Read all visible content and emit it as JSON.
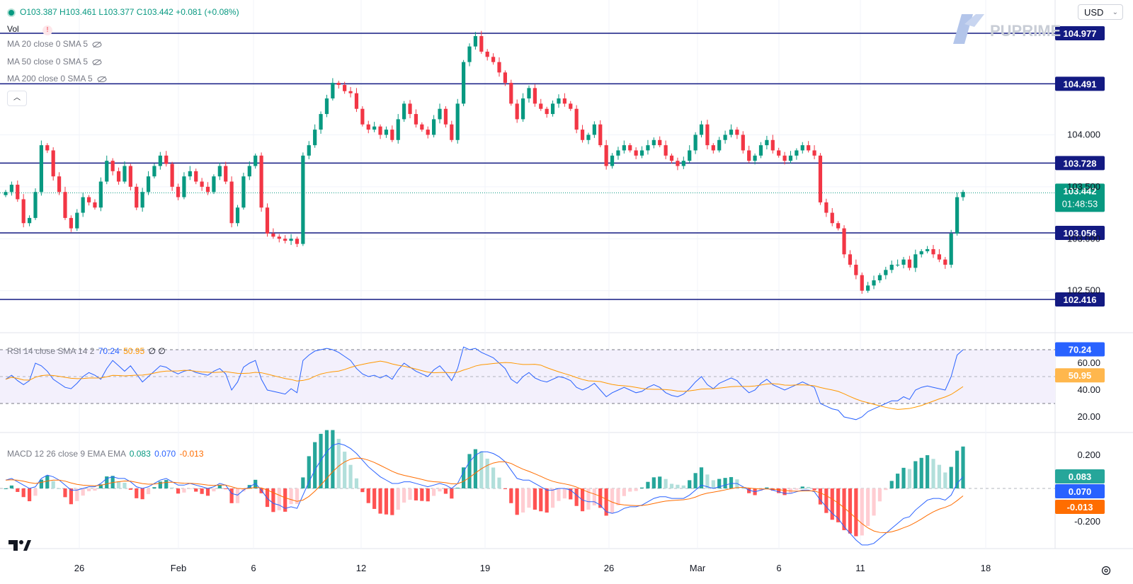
{
  "symbol": {
    "ohlc_text": "O103.387  H103.461  L103.377  C103.442  +0.081 (+0.08%)",
    "vol_label": "Vol",
    "vol_warning": "!",
    "indicators": [
      "MA 20 close 0 SMA 5",
      "MA 50 close 0 SMA 5",
      "MA 200 close 0 SMA 5"
    ]
  },
  "currency": "USD",
  "brand": "PUPRIME",
  "colors": {
    "up": "#089981",
    "down": "#f23645",
    "line": "#131a82",
    "rsi": "#2962ff",
    "rsi_ma": "#ff9800",
    "macd_line": "#2962ff",
    "signal": "#ff6d00"
  },
  "chart_data": [
    {
      "type": "candlestick",
      "title": "",
      "current_price": "103.442",
      "countdown": "01:48:53",
      "yaxis_ticks": [
        "104.000",
        "103.500",
        "103.000",
        "102.500"
      ],
      "xaxis_ticks": [
        "26",
        "Feb",
        "6",
        "12",
        "19",
        "26",
        "Mar",
        "6",
        "11",
        "18"
      ],
      "ylim": [
        102.3,
        105.05
      ],
      "support_resistance_levels": [
        "104.977",
        "104.491",
        "103.728",
        "103.056",
        "102.416"
      ],
      "candles_close": [
        103.45,
        103.52,
        103.38,
        103.15,
        103.2,
        103.45,
        103.9,
        103.85,
        103.6,
        103.45,
        103.2,
        103.1,
        103.25,
        103.4,
        103.35,
        103.3,
        103.55,
        103.75,
        103.65,
        103.55,
        103.7,
        103.5,
        103.3,
        103.45,
        103.6,
        103.7,
        103.8,
        103.72,
        103.5,
        103.4,
        103.6,
        103.65,
        103.55,
        103.5,
        103.45,
        103.6,
        103.7,
        103.55,
        103.15,
        103.3,
        103.6,
        103.7,
        103.8,
        103.3,
        103.05,
        103.02,
        103.0,
        102.98,
        103.0,
        102.95,
        103.8,
        103.9,
        104.05,
        104.2,
        104.35,
        104.5,
        104.48,
        104.42,
        104.4,
        104.25,
        104.1,
        104.05,
        104.08,
        104.0,
        104.05,
        103.95,
        104.15,
        104.3,
        104.2,
        104.1,
        104.05,
        104.0,
        104.15,
        104.25,
        104.1,
        103.95,
        104.3,
        104.7,
        104.85,
        104.95,
        104.8,
        104.75,
        104.7,
        104.6,
        104.5,
        104.3,
        104.15,
        104.35,
        104.45,
        104.3,
        104.25,
        104.2,
        104.3,
        104.35,
        104.3,
        104.25,
        104.05,
        103.95,
        104.0,
        104.1,
        103.9,
        103.7,
        103.8,
        103.85,
        103.9,
        103.85,
        103.8,
        103.85,
        103.9,
        103.95,
        103.9,
        103.8,
        103.75,
        103.7,
        103.75,
        103.85,
        104.0,
        104.1,
        103.9,
        103.85,
        103.95,
        104.0,
        104.05,
        104.0,
        103.85,
        103.75,
        103.8,
        103.9,
        103.95,
        103.85,
        103.8,
        103.75,
        103.8,
        103.85,
        103.9,
        103.85,
        103.8,
        103.35,
        103.25,
        103.15,
        103.1,
        102.85,
        102.75,
        102.65,
        102.5,
        102.55,
        102.6,
        102.65,
        102.7,
        102.75,
        102.75,
        102.8,
        102.72,
        102.85,
        102.88,
        102.9,
        102.85,
        102.8,
        102.75,
        103.05,
        103.4,
        103.45
      ],
      "macd_legend": {
        "label": "MACD 12 26 close 9 EMA EMA",
        "hist": "0.083",
        "macd": "0.070",
        "signal": "-0.013"
      },
      "macd_ticks": [
        "0.200",
        "-0.200"
      ],
      "rsi_legend": {
        "label": "RSI 14 close SMA 14 2",
        "rsi": "70.24",
        "ma": "50.95",
        "extra": "∅ ∅"
      },
      "rsi_ticks": [
        "60.00",
        "40.00",
        "20.00"
      ],
      "rsi_values": [
        48,
        51,
        47,
        44,
        47,
        60,
        58,
        54,
        48,
        45,
        42,
        41,
        45,
        50,
        53,
        51,
        48,
        56,
        62,
        58,
        54,
        58,
        52,
        46,
        50,
        54,
        58,
        57,
        54,
        52,
        54,
        55,
        53,
        52,
        51,
        54,
        56,
        52,
        40,
        46,
        57,
        60,
        62,
        48,
        40,
        39,
        38,
        37,
        41,
        38,
        62,
        66,
        69,
        70,
        71,
        70,
        68,
        65,
        62,
        56,
        52,
        50,
        51,
        49,
        51,
        48,
        55,
        60,
        57,
        54,
        52,
        50,
        55,
        58,
        53,
        47,
        56,
        72,
        70,
        71,
        68,
        66,
        64,
        60,
        56,
        48,
        45,
        50,
        53,
        49,
        47,
        46,
        48,
        50,
        49,
        47,
        42,
        40,
        42,
        45,
        40,
        35,
        38,
        40,
        42,
        40,
        38,
        39,
        42,
        44,
        42,
        38,
        36,
        35,
        37,
        41,
        46,
        50,
        44,
        41,
        45,
        47,
        49,
        47,
        42,
        38,
        40,
        45,
        48,
        44,
        42,
        40,
        42,
        44,
        46,
        44,
        42,
        30,
        28,
        26,
        25,
        20,
        19,
        18,
        20,
        24,
        26,
        28,
        30,
        32,
        32,
        35,
        33,
        40,
        42,
        43,
        42,
        41,
        40,
        50,
        66,
        70
      ],
      "macd_values": [
        0.05,
        0.06,
        0.04,
        0.02,
        0.0,
        0.01,
        0.06,
        0.08,
        0.07,
        0.05,
        0.02,
        -0.01,
        -0.01,
        0.0,
        0.01,
        0.01,
        0.03,
        0.06,
        0.07,
        0.06,
        0.06,
        0.04,
        0.01,
        0.0,
        0.01,
        0.03,
        0.05,
        0.06,
        0.04,
        0.02,
        0.02,
        0.03,
        0.02,
        0.01,
        0.0,
        0.01,
        0.03,
        0.02,
        -0.03,
        -0.04,
        -0.01,
        0.01,
        0.03,
        -0.01,
        -0.06,
        -0.09,
        -0.1,
        -0.12,
        -0.11,
        -0.12,
        -0.04,
        0.04,
        0.11,
        0.17,
        0.22,
        0.26,
        0.27,
        0.26,
        0.24,
        0.21,
        0.17,
        0.13,
        0.1,
        0.07,
        0.05,
        0.03,
        0.03,
        0.04,
        0.04,
        0.03,
        0.02,
        0.01,
        0.02,
        0.03,
        0.02,
        0.0,
        0.03,
        0.1,
        0.16,
        0.2,
        0.22,
        0.22,
        0.21,
        0.19,
        0.16,
        0.11,
        0.06,
        0.05,
        0.05,
        0.03,
        0.01,
        -0.01,
        -0.01,
        0.0,
        0.0,
        -0.01,
        -0.04,
        -0.07,
        -0.08,
        -0.08,
        -0.1,
        -0.14,
        -0.15,
        -0.14,
        -0.12,
        -0.11,
        -0.11,
        -0.1,
        -0.08,
        -0.06,
        -0.05,
        -0.05,
        -0.06,
        -0.06,
        -0.06,
        -0.04,
        -0.01,
        0.02,
        0.01,
        0.0,
        0.01,
        0.02,
        0.03,
        0.03,
        0.01,
        -0.01,
        -0.02,
        -0.01,
        0.0,
        -0.01,
        -0.02,
        -0.03,
        -0.03,
        -0.02,
        -0.01,
        -0.01,
        -0.02,
        -0.07,
        -0.11,
        -0.15,
        -0.18,
        -0.23,
        -0.27,
        -0.31,
        -0.34,
        -0.34,
        -0.33,
        -0.3,
        -0.27,
        -0.24,
        -0.21,
        -0.18,
        -0.17,
        -0.13,
        -0.1,
        -0.07,
        -0.06,
        -0.06,
        -0.07,
        -0.04,
        0.03,
        0.07
      ]
    }
  ]
}
